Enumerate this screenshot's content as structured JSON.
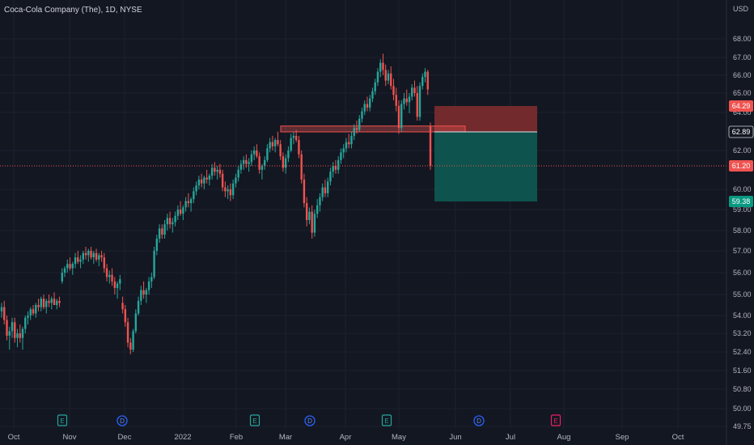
{
  "header": {
    "symbol_title": "Coca-Cola Company (The), 1D, NYSE"
  },
  "chart_data": {
    "type": "candlestick",
    "title": "Coca-Cola Company (The), 1D, NYSE",
    "currency_label": "USD",
    "y_ticks": [
      "68.00",
      "67.00",
      "66.00",
      "65.00",
      "64.00",
      "62.00",
      "60.00",
      "59.00",
      "58.00",
      "57.00",
      "56.00",
      "55.00",
      "54.00",
      "53.20",
      "52.40",
      "51.60",
      "50.80",
      "50.00",
      "49.75"
    ],
    "x_labels": [
      "Oct",
      "Nov",
      "Dec",
      "2022",
      "Feb",
      "Mar",
      "Apr",
      "May",
      "Jun",
      "Jul",
      "Aug",
      "Sep",
      "Oct"
    ],
    "price_badges": [
      {
        "label": "64.29",
        "kind": "stop"
      },
      {
        "label": "62.89",
        "kind": "entry"
      },
      {
        "label": "61.20",
        "kind": "last"
      },
      {
        "label": "59.38",
        "kind": "target"
      }
    ],
    "position": {
      "entry": 62.89,
      "stop": 64.29,
      "target": 59.38,
      "side": "short"
    },
    "resistance_zone": {
      "low": 62.89,
      "high": 63.12
    },
    "last_price": 61.2,
    "events": [
      {
        "type": "earnings",
        "letter": "E"
      },
      {
        "type": "dividend",
        "letter": "D"
      },
      {
        "type": "earnings",
        "letter": "E"
      },
      {
        "type": "dividend",
        "letter": "D"
      },
      {
        "type": "earnings",
        "letter": "E"
      },
      {
        "type": "dividend",
        "letter": "D"
      },
      {
        "type": "earnings-upcoming",
        "letter": "E"
      }
    ],
    "colors": {
      "up": "#26a69a",
      "down": "#ef5350",
      "background": "#131722",
      "stop_zone": "#7d2c2f",
      "target_zone": "#0e5a52"
    },
    "candles": [
      [
        54.2,
        54.6,
        53.9,
        54.4
      ],
      [
        54.4,
        54.7,
        53.6,
        53.8
      ],
      [
        53.8,
        54.0,
        52.9,
        53.1
      ],
      [
        53.1,
        53.5,
        52.5,
        53.3
      ],
      [
        53.3,
        53.9,
        53.0,
        53.7
      ],
      [
        53.7,
        53.9,
        52.8,
        53.0
      ],
      [
        53.0,
        53.4,
        52.6,
        53.2
      ],
      [
        53.2,
        53.6,
        52.8,
        53.0
      ],
      [
        53.0,
        53.5,
        52.5,
        53.4
      ],
      [
        53.4,
        54.0,
        53.2,
        53.9
      ],
      [
        53.9,
        54.2,
        53.6,
        54.0
      ],
      [
        54.0,
        54.4,
        53.8,
        54.3
      ],
      [
        54.3,
        54.5,
        54.0,
        54.1
      ],
      [
        54.1,
        54.6,
        53.9,
        54.5
      ],
      [
        54.5,
        54.8,
        54.2,
        54.4
      ],
      [
        54.4,
        54.9,
        54.2,
        54.8
      ],
      [
        54.8,
        55.0,
        54.3,
        54.4
      ],
      [
        54.4,
        54.8,
        54.1,
        54.7
      ],
      [
        54.7,
        55.0,
        54.4,
        54.6
      ],
      [
        54.6,
        54.9,
        54.3,
        54.8
      ],
      [
        54.8,
        55.1,
        54.5,
        54.5
      ],
      [
        54.5,
        54.8,
        54.3,
        54.7
      ],
      [
        54.7,
        54.9,
        54.4,
        54.6
      ],
      [
        55.6,
        56.2,
        55.5,
        56.0
      ],
      [
        56.0,
        56.3,
        55.8,
        56.2
      ],
      [
        56.2,
        56.6,
        56.0,
        56.4
      ],
      [
        56.4,
        56.7,
        56.1,
        56.2
      ],
      [
        56.2,
        56.5,
        55.9,
        56.4
      ],
      [
        56.4,
        56.9,
        56.2,
        56.7
      ],
      [
        56.7,
        57.0,
        56.4,
        56.5
      ],
      [
        56.5,
        56.8,
        56.2,
        56.6
      ],
      [
        56.6,
        57.0,
        56.4,
        56.9
      ],
      [
        56.9,
        57.2,
        56.6,
        56.8
      ],
      [
        56.8,
        57.1,
        56.5,
        57.0
      ],
      [
        57.0,
        57.2,
        56.6,
        56.7
      ],
      [
        56.7,
        57.0,
        56.4,
        56.9
      ],
      [
        56.9,
        57.1,
        56.5,
        56.6
      ],
      [
        56.6,
        56.9,
        56.3,
        56.8
      ],
      [
        56.8,
        57.0,
        56.5,
        56.7
      ],
      [
        56.7,
        56.9,
        56.0,
        56.2
      ],
      [
        56.2,
        56.4,
        55.6,
        55.8
      ],
      [
        55.8,
        56.1,
        55.5,
        55.9
      ],
      [
        55.9,
        56.2,
        55.4,
        55.6
      ],
      [
        55.6,
        55.8,
        55.0,
        55.3
      ],
      [
        55.3,
        55.6,
        54.8,
        55.5
      ],
      [
        55.5,
        55.9,
        55.2,
        55.7
      ],
      [
        54.6,
        54.9,
        54.1,
        54.3
      ],
      [
        54.3,
        54.5,
        53.5,
        53.7
      ],
      [
        53.7,
        53.9,
        52.6,
        52.8
      ],
      [
        52.8,
        53.0,
        52.3,
        52.5
      ],
      [
        52.5,
        53.4,
        52.4,
        53.3
      ],
      [
        53.3,
        54.3,
        53.2,
        54.1
      ],
      [
        54.1,
        54.9,
        54.0,
        54.7
      ],
      [
        54.7,
        55.4,
        54.5,
        55.2
      ],
      [
        55.2,
        55.6,
        54.8,
        55.0
      ],
      [
        55.0,
        55.3,
        54.6,
        55.2
      ],
      [
        55.2,
        55.8,
        55.0,
        55.6
      ],
      [
        55.6,
        56.0,
        55.3,
        55.8
      ],
      [
        55.8,
        57.2,
        55.7,
        57.0
      ],
      [
        57.0,
        57.8,
        56.8,
        57.6
      ],
      [
        57.6,
        58.3,
        57.4,
        58.1
      ],
      [
        58.1,
        58.3,
        57.6,
        57.8
      ],
      [
        57.8,
        58.5,
        57.6,
        58.3
      ],
      [
        58.3,
        58.8,
        58.0,
        58.6
      ],
      [
        58.6,
        58.9,
        58.1,
        58.3
      ],
      [
        58.3,
        58.6,
        57.9,
        58.4
      ],
      [
        58.4,
        58.9,
        58.2,
        58.7
      ],
      [
        58.7,
        59.2,
        58.5,
        59.0
      ],
      [
        59.0,
        59.4,
        58.7,
        58.8
      ],
      [
        58.8,
        59.2,
        58.5,
        59.1
      ],
      [
        59.1,
        59.6,
        58.9,
        59.4
      ],
      [
        59.4,
        59.8,
        59.1,
        59.3
      ],
      [
        59.3,
        59.6,
        58.9,
        59.5
      ],
      [
        59.5,
        60.1,
        59.3,
        59.9
      ],
      [
        59.9,
        60.4,
        59.7,
        60.2
      ],
      [
        60.2,
        60.7,
        60.0,
        60.5
      ],
      [
        60.5,
        60.8,
        60.1,
        60.3
      ],
      [
        60.3,
        60.7,
        60.0,
        60.6
      ],
      [
        60.6,
        61.0,
        60.3,
        60.5
      ],
      [
        60.5,
        60.8,
        60.2,
        60.7
      ],
      [
        60.7,
        61.3,
        60.5,
        61.1
      ],
      [
        61.1,
        61.4,
        60.7,
        60.9
      ],
      [
        60.9,
        61.2,
        60.5,
        61.0
      ],
      [
        61.0,
        61.3,
        60.6,
        60.8
      ],
      [
        60.8,
        61.0,
        59.9,
        60.1
      ],
      [
        60.1,
        60.4,
        59.6,
        59.9
      ],
      [
        59.9,
        60.2,
        59.5,
        60.0
      ],
      [
        60.0,
        60.3,
        59.4,
        59.7
      ],
      [
        59.7,
        60.5,
        59.5,
        60.3
      ],
      [
        60.3,
        60.8,
        60.1,
        60.6
      ],
      [
        60.6,
        61.2,
        60.4,
        61.0
      ],
      [
        61.0,
        61.5,
        60.8,
        61.3
      ],
      [
        61.3,
        61.7,
        61.0,
        61.5
      ],
      [
        61.5,
        61.8,
        61.1,
        61.3
      ],
      [
        61.3,
        61.6,
        60.9,
        61.4
      ],
      [
        61.4,
        62.0,
        61.2,
        61.8
      ],
      [
        61.8,
        62.2,
        61.5,
        62.0
      ],
      [
        62.0,
        62.3,
        61.6,
        61.7
      ],
      [
        61.7,
        61.9,
        60.8,
        61.0
      ],
      [
        61.0,
        61.3,
        60.5,
        61.2
      ],
      [
        61.2,
        61.7,
        61.0,
        61.5
      ],
      [
        61.5,
        62.3,
        61.4,
        62.1
      ],
      [
        62.1,
        62.6,
        61.9,
        62.4
      ],
      [
        62.4,
        62.7,
        62.0,
        62.2
      ],
      [
        62.2,
        62.6,
        61.9,
        62.5
      ],
      [
        62.5,
        62.9,
        62.2,
        62.3
      ],
      [
        62.3,
        62.5,
        61.5,
        61.7
      ],
      [
        61.7,
        61.9,
        60.9,
        61.1
      ],
      [
        61.1,
        61.8,
        60.8,
        61.6
      ],
      [
        61.6,
        62.2,
        61.4,
        62.0
      ],
      [
        62.0,
        62.8,
        61.9,
        62.6
      ],
      [
        62.6,
        62.9,
        62.3,
        62.7
      ],
      [
        62.7,
        63.0,
        62.4,
        62.5
      ],
      [
        62.5,
        62.7,
        61.6,
        61.8
      ],
      [
        61.8,
        62.0,
        60.3,
        60.5
      ],
      [
        60.5,
        60.8,
        59.1,
        59.3
      ],
      [
        59.3,
        59.6,
        58.2,
        58.5
      ],
      [
        58.5,
        59.1,
        58.3,
        58.9
      ],
      [
        58.9,
        59.2,
        57.6,
        57.9
      ],
      [
        57.9,
        59.0,
        57.7,
        58.8
      ],
      [
        58.8,
        59.5,
        58.6,
        59.2
      ],
      [
        59.2,
        59.8,
        58.9,
        59.6
      ],
      [
        59.6,
        60.3,
        59.4,
        60.1
      ],
      [
        60.1,
        60.5,
        59.6,
        59.8
      ],
      [
        59.8,
        60.6,
        59.6,
        60.4
      ],
      [
        60.4,
        61.1,
        60.2,
        60.9
      ],
      [
        60.9,
        61.4,
        60.6,
        61.2
      ],
      [
        61.2,
        61.5,
        60.8,
        61.0
      ],
      [
        61.0,
        61.7,
        60.8,
        61.5
      ],
      [
        61.5,
        62.1,
        61.3,
        61.9
      ],
      [
        61.9,
        62.3,
        61.6,
        62.1
      ],
      [
        62.1,
        62.6,
        61.9,
        62.4
      ],
      [
        62.4,
        62.8,
        62.1,
        62.3
      ],
      [
        62.3,
        62.9,
        62.1,
        62.7
      ],
      [
        62.7,
        63.3,
        62.5,
        63.1
      ],
      [
        63.1,
        63.5,
        62.8,
        63.0
      ],
      [
        63.0,
        63.8,
        62.9,
        63.6
      ],
      [
        63.6,
        64.2,
        63.4,
        64.0
      ],
      [
        64.0,
        64.6,
        63.8,
        64.4
      ],
      [
        64.4,
        64.8,
        64.0,
        64.2
      ],
      [
        64.2,
        64.9,
        64.0,
        64.7
      ],
      [
        64.7,
        65.3,
        64.5,
        65.1
      ],
      [
        65.1,
        65.8,
        64.9,
        65.6
      ],
      [
        65.6,
        66.4,
        65.4,
        66.2
      ],
      [
        66.2,
        66.9,
        65.9,
        66.7
      ],
      [
        66.7,
        67.2,
        66.0,
        66.3
      ],
      [
        66.3,
        66.6,
        65.4,
        65.7
      ],
      [
        65.7,
        66.3,
        65.5,
        66.1
      ],
      [
        66.1,
        66.5,
        65.2,
        65.4
      ],
      [
        65.4,
        65.8,
        64.6,
        64.9
      ],
      [
        64.9,
        65.3,
        64.0,
        64.3
      ],
      [
        64.3,
        64.6,
        62.8,
        63.1
      ],
      [
        63.1,
        64.6,
        62.9,
        64.4
      ],
      [
        64.4,
        65.0,
        64.1,
        64.7
      ],
      [
        64.7,
        65.2,
        64.3,
        64.5
      ],
      [
        64.5,
        65.0,
        63.9,
        64.8
      ],
      [
        64.8,
        65.5,
        64.6,
        65.3
      ],
      [
        65.3,
        65.7,
        64.8,
        65.0
      ],
      [
        65.0,
        65.4,
        63.5,
        63.7
      ],
      [
        63.7,
        65.6,
        63.5,
        65.4
      ],
      [
        65.4,
        66.1,
        65.2,
        65.9
      ],
      [
        65.9,
        66.4,
        65.6,
        66.2
      ],
      [
        66.2,
        66.3,
        64.9,
        65.2
      ],
      [
        63.2,
        63.4,
        61.0,
        61.2
      ]
    ]
  }
}
